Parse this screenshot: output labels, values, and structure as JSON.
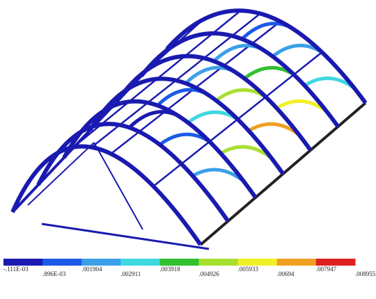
{
  "legend": {
    "labels": [
      "-.111E-03",
      ".896E-03",
      ".001904",
      ".002911",
      ".003918",
      ".004926",
      ".005933",
      ".00694",
      ".007947",
      ".008955"
    ],
    "colors": [
      "#1a1ab0",
      "#1c5ae8",
      "#3aa0e8",
      "#40d8e0",
      "#30c030",
      "#a8e030",
      "#f0f028",
      "#f0a020",
      "#e02020"
    ]
  }
}
